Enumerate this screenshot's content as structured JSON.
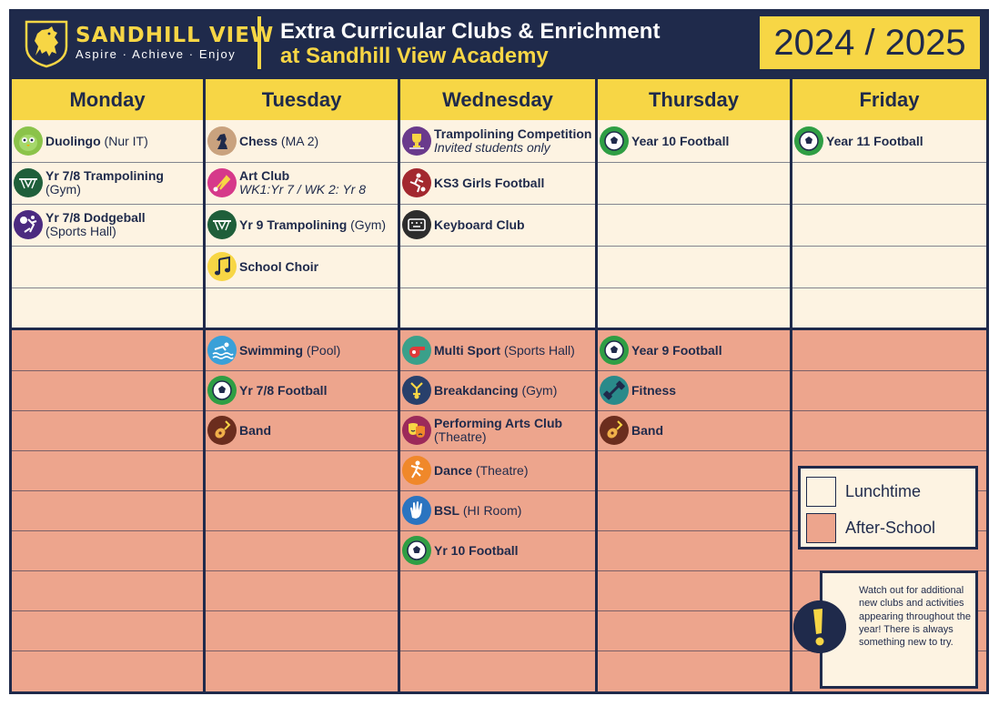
{
  "header": {
    "brand_name": "SANDHILL VIEW",
    "motto": "Aspire · Achieve · Enjoy",
    "title_line1": "Extra Curricular Clubs & Enrichment",
    "title_line2": "at Sandhill View Academy",
    "year": "2024 / 2025"
  },
  "colors": {
    "navy": "#1f2a4b",
    "yellow": "#f7d645",
    "lunchtime": "#fdf3e2",
    "after_school": "#eda58d"
  },
  "days": [
    "Monday",
    "Tuesday",
    "Wednesday",
    "Thursday",
    "Friday"
  ],
  "lunchtime": {
    "monday": [
      {
        "title": "Duolingo",
        "suffix": " (Nur IT)",
        "icon": "duolingo-owl-icon"
      },
      {
        "title": "Yr 7/8 Trampolining",
        "sub": "(Gym)",
        "icon": "trampoline-icon"
      },
      {
        "title": "Yr 7/8 Dodgeball",
        "sub": "(Sports Hall)",
        "icon": "dodgeball-icon"
      }
    ],
    "tuesday": [
      {
        "title": "Chess",
        "suffix": " (MA 2)",
        "icon": "chess-knight-icon"
      },
      {
        "title": "Art Club",
        "italic": "WK1:Yr 7 / WK 2: Yr 8",
        "icon": "paintbrush-icon"
      },
      {
        "title": "Yr 9 Trampolining",
        "suffix": " (Gym)",
        "icon": "trampoline-icon"
      },
      {
        "title": "School Choir",
        "icon": "music-note-icon"
      }
    ],
    "wednesday": [
      {
        "title": "Trampolining Competition",
        "italic": "Invited students only",
        "icon": "trophy-icon"
      },
      {
        "title": "KS3 Girls Football",
        "icon": "football-player-icon"
      },
      {
        "title": "Keyboard Club",
        "icon": "keyboard-icon"
      }
    ],
    "thursday": [
      {
        "title": "Year 10 Football",
        "icon": "football-icon"
      }
    ],
    "friday": [
      {
        "title": "Year 11 Football",
        "icon": "football-icon"
      }
    ]
  },
  "after_school": {
    "tuesday": [
      {
        "title": "Swimming",
        "suffix": " (Pool)",
        "icon": "swimming-icon"
      },
      {
        "title": "Yr 7/8 Football",
        "icon": "football-icon"
      },
      {
        "title": "Band",
        "icon": "guitar-icon"
      }
    ],
    "wednesday": [
      {
        "title": "Multi Sport",
        "suffix": " (Sports Hall)",
        "icon": "whistle-icon"
      },
      {
        "title": "Breakdancing",
        "suffix": " (Gym)",
        "icon": "breakdance-icon"
      },
      {
        "title": "Performing Arts Club",
        "sub": "(Theatre)",
        "icon": "theatre-masks-icon"
      },
      {
        "title": "Dance",
        "suffix": " (Theatre)",
        "icon": "dance-icon"
      },
      {
        "title": "BSL",
        "suffix": " (HI Room)",
        "icon": "sign-language-hand-icon"
      },
      {
        "title": "Yr 10 Football",
        "icon": "football-icon"
      }
    ],
    "thursday": [
      {
        "title": "Year 9 Football",
        "icon": "football-icon"
      },
      {
        "title": "Fitness",
        "icon": "dumbbell-icon"
      },
      {
        "title": "Band",
        "icon": "guitar-icon"
      }
    ]
  },
  "legend": {
    "lunchtime": "Lunchtime",
    "after_school": "After-School"
  },
  "note": "Watch out for additional new clubs and activities appearing throughout the year! There is always something new to try."
}
